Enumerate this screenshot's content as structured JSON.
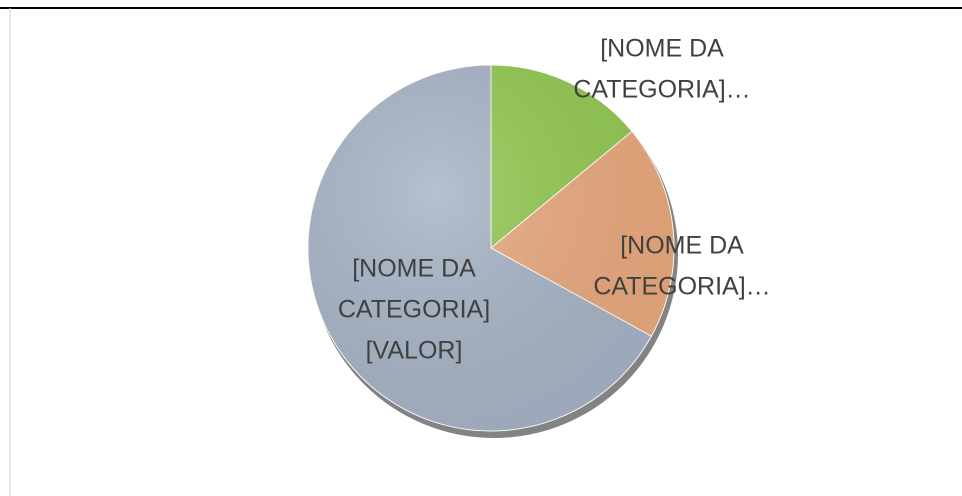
{
  "chart_data": {
    "type": "pie",
    "values": [
      14,
      19,
      67
    ],
    "colors": [
      "#92c850",
      "#e9a87c",
      "#a6b3c5"
    ],
    "data_labels": [
      [
        "[NOME DA",
        "CATEGORIA]…"
      ],
      [
        "[NOME DA",
        "CATEGORIA]…"
      ],
      [
        "[NOME DA",
        "CATEGORIA]",
        "[VALOR]"
      ]
    ]
  }
}
